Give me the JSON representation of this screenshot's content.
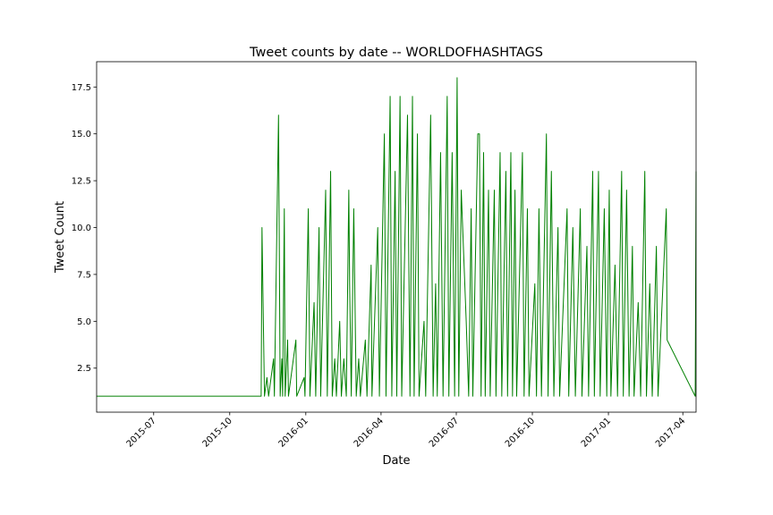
{
  "chart_data": {
    "type": "line",
    "title": "Tweet counts by date -- WORLDOFHASHTAGS",
    "xlabel": "Date",
    "ylabel": "Tweet Count",
    "series": [
      {
        "name": "Tweet Count",
        "color": "#008000",
        "x": [
          "2015-04-23",
          "2015-11-08",
          "2015-11-09",
          "2015-11-12",
          "2015-11-15",
          "2015-11-17",
          "2015-11-23",
          "2015-11-24",
          "2015-11-29",
          "2015-12-01",
          "2015-12-03",
          "2015-12-04",
          "2015-12-06",
          "2015-12-07",
          "2015-12-10",
          "2015-12-11",
          "2015-12-20",
          "2015-12-21",
          "2015-12-30",
          "2015-12-31",
          "2016-01-04",
          "2016-01-06",
          "2016-01-11",
          "2016-01-13",
          "2016-01-17",
          "2016-01-19",
          "2016-01-25",
          "2016-01-27",
          "2016-01-31",
          "2016-02-02",
          "2016-02-05",
          "2016-02-07",
          "2016-02-11",
          "2016-02-13",
          "2016-02-16",
          "2016-02-19",
          "2016-02-22",
          "2016-02-23",
          "2016-02-25",
          "2016-02-28",
          "2016-03-02",
          "2016-03-05",
          "2016-03-07",
          "2016-03-13",
          "2016-03-15",
          "2016-03-20",
          "2016-03-21",
          "2016-03-28",
          "2016-03-30",
          "2016-04-05",
          "2016-04-07",
          "2016-04-12",
          "2016-04-14",
          "2016-04-18",
          "2016-04-20",
          "2016-04-24",
          "2016-04-26",
          "2016-05-03",
          "2016-05-06",
          "2016-05-09",
          "2016-05-11",
          "2016-05-15",
          "2016-05-17",
          "2016-05-23",
          "2016-05-25",
          "2016-05-31",
          "2016-06-03",
          "2016-06-06",
          "2016-06-08",
          "2016-06-12",
          "2016-06-15",
          "2016-06-20",
          "2016-06-22",
          "2016-06-26",
          "2016-06-29",
          "2016-07-02",
          "2016-07-04",
          "2016-07-07",
          "2016-07-13",
          "2016-07-16",
          "2016-07-19",
          "2016-07-21",
          "2016-07-27",
          "2016-07-29",
          "2016-07-31",
          "2016-08-03",
          "2016-08-05",
          "2016-08-09",
          "2016-08-11",
          "2016-08-16",
          "2016-08-18",
          "2016-08-23",
          "2016-08-25",
          "2016-08-30",
          "2016-09-01",
          "2016-09-05",
          "2016-09-07",
          "2016-09-10",
          "2016-09-12",
          "2016-09-19",
          "2016-09-21",
          "2016-09-25",
          "2016-09-27",
          "2016-10-04",
          "2016-10-06",
          "2016-10-09",
          "2016-10-12",
          "2016-10-18",
          "2016-10-20",
          "2016-10-24",
          "2016-10-27",
          "2016-11-01",
          "2016-11-03",
          "2016-11-12",
          "2016-11-14",
          "2016-11-19",
          "2016-11-22",
          "2016-11-28",
          "2016-11-30",
          "2016-12-06",
          "2016-12-08",
          "2016-12-13",
          "2016-12-15",
          "2016-12-20",
          "2016-12-22",
          "2016-12-27",
          "2016-12-30",
          "2017-01-02",
          "2017-01-04",
          "2017-01-09",
          "2017-01-12",
          "2017-01-17",
          "2017-01-19",
          "2017-01-23",
          "2017-01-26",
          "2017-01-30",
          "2017-02-01",
          "2017-02-06",
          "2017-02-09",
          "2017-02-14",
          "2017-02-16",
          "2017-02-20",
          "2017-02-23",
          "2017-02-28",
          "2017-03-02",
          "2017-03-12",
          "2017-03-13",
          "2017-04-16",
          "2017-04-17"
        ],
        "values": [
          1,
          1,
          10,
          1,
          2,
          1,
          3,
          1,
          16,
          1,
          3,
          1,
          11,
          1,
          4,
          1,
          4,
          1,
          2,
          1,
          11,
          1,
          6,
          1,
          10,
          1,
          12,
          1,
          13,
          1,
          3,
          1,
          5,
          1,
          3,
          1,
          12,
          7,
          1,
          11,
          1,
          3,
          1,
          4,
          1,
          8,
          1,
          10,
          1,
          15,
          1,
          17,
          1,
          13,
          1,
          17,
          1,
          16,
          1,
          17,
          1,
          15,
          1,
          5,
          1,
          16,
          1,
          7,
          1,
          14,
          1,
          17,
          1,
          14,
          1,
          18,
          1,
          12,
          5,
          1,
          11,
          1,
          15,
          15,
          1,
          14,
          1,
          12,
          1,
          12,
          1,
          14,
          1,
          13,
          1,
          14,
          1,
          12,
          1,
          14,
          1,
          11,
          1,
          7,
          1,
          11,
          1,
          15,
          1,
          13,
          1,
          10,
          1,
          11,
          1,
          10,
          1,
          11,
          1,
          9,
          1,
          13,
          1,
          13,
          1,
          11,
          1,
          12,
          1,
          8,
          1,
          13,
          1,
          12,
          1,
          9,
          1,
          6,
          1,
          13,
          1,
          7,
          1,
          9,
          1,
          11,
          4,
          1,
          13
        ]
      }
    ],
    "xlim": [
      "2015-04-23",
      "2017-04-17"
    ],
    "xticks": [
      {
        "value": "2015-07-01",
        "label": "2015-07"
      },
      {
        "value": "2015-10-01",
        "label": "2015-10"
      },
      {
        "value": "2016-01-01",
        "label": "2016-01"
      },
      {
        "value": "2016-04-01",
        "label": "2016-04"
      },
      {
        "value": "2016-07-01",
        "label": "2016-07"
      },
      {
        "value": "2016-10-01",
        "label": "2016-10"
      },
      {
        "value": "2017-01-01",
        "label": "2017-01"
      },
      {
        "value": "2017-04-01",
        "label": "2017-04"
      }
    ],
    "ylim": [
      0.15,
      18.85
    ],
    "yticks": [
      2.5,
      {
        "value": 5,
        "label": "5.0"
      },
      7.5,
      {
        "value": 10,
        "label": "10.0"
      },
      12.5,
      {
        "value": 15,
        "label": "15.0"
      },
      17.5
    ],
    "grid": false
  }
}
